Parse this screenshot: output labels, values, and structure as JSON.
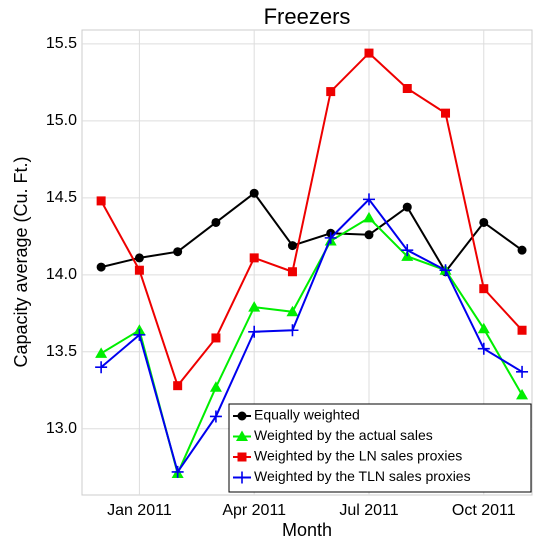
{
  "chart_data": {
    "type": "line",
    "title": "Freezers",
    "x_label": "Month",
    "y_label": "Capacity average (Cu. Ft.)",
    "x": [
      "2010-12",
      "2011-01",
      "2011-02",
      "2011-03",
      "2011-04",
      "2011-05",
      "2011-06",
      "2011-07",
      "2011-08",
      "2011-09",
      "2011-10",
      "2011-11"
    ],
    "xticks": [
      {
        "value": "2011-01",
        "label": "Jan 2011"
      },
      {
        "value": "2011-04",
        "label": "Apr 2011"
      },
      {
        "value": "2011-07",
        "label": "Jul 2011"
      },
      {
        "value": "2011-10",
        "label": "Oct 2011"
      }
    ],
    "ylim": [
      12.57,
      15.59
    ],
    "yticks": [
      {
        "value": 13,
        "label": "13.0"
      },
      13.5,
      {
        "value": 14,
        "label": "14.0"
      },
      14.5,
      {
        "value": 15,
        "label": "15.0"
      },
      15.5
    ],
    "grid": true,
    "legend_position": "bottom-right",
    "series": [
      {
        "name": "Equally weighted",
        "color": "#000000",
        "marker": "circle",
        "values": [
          14.05,
          14.11,
          14.15,
          14.34,
          14.53,
          14.19,
          14.27,
          14.26,
          14.44,
          14.02,
          14.34,
          14.16
        ]
      },
      {
        "name": "Weighted by the actual sales",
        "color": "#00ee00",
        "marker": "triangle",
        "values": [
          13.49,
          13.64,
          12.71,
          13.27,
          13.79,
          13.76,
          14.22,
          14.37,
          14.12,
          14.03,
          13.65,
          13.22
        ]
      },
      {
        "name": "Weighted by the LN sales proxies",
        "color": "#ee0000",
        "marker": "square",
        "values": [
          14.48,
          14.03,
          13.28,
          13.59,
          14.11,
          14.02,
          15.19,
          15.44,
          15.21,
          15.05,
          13.91,
          13.64
        ]
      },
      {
        "name": "Weighted by the TLN sales proxies",
        "color": "#0000ee",
        "marker": "plus",
        "values": [
          13.4,
          13.61,
          12.72,
          13.08,
          13.63,
          13.64,
          14.24,
          14.49,
          14.16,
          14.03,
          13.52,
          13.37
        ]
      }
    ]
  }
}
